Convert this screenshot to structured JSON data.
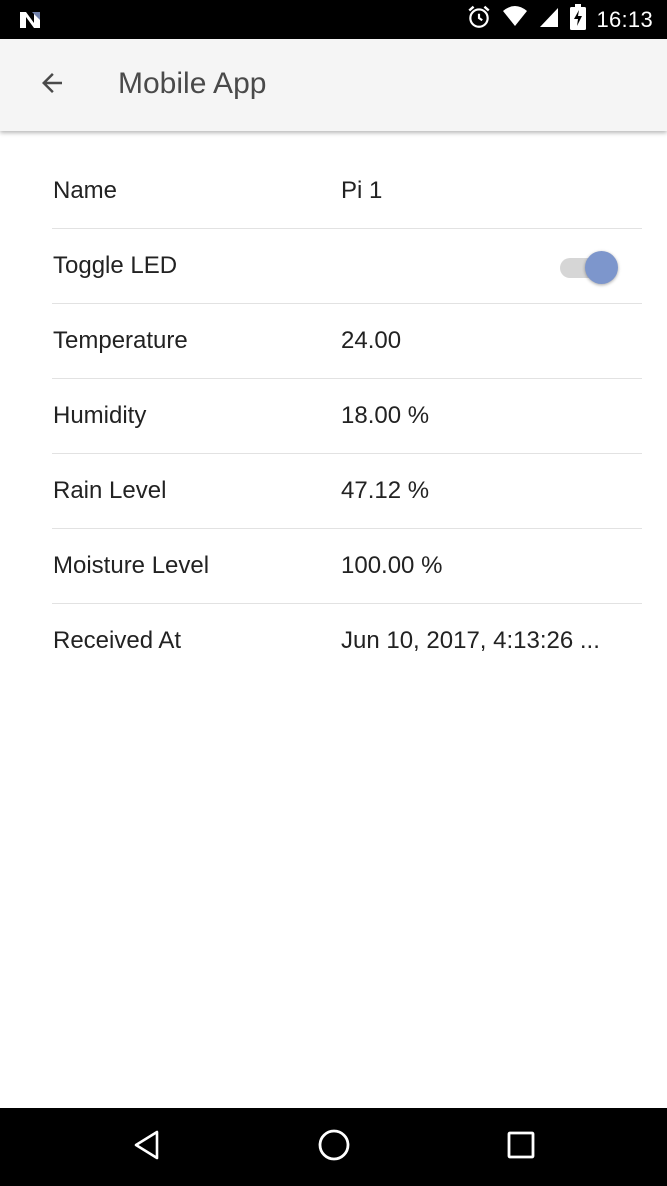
{
  "status_bar": {
    "time": "16:13",
    "icons": [
      "notification-n-icon",
      "alarm-icon",
      "wifi-icon",
      "cell-signal-icon",
      "battery-charging-icon"
    ]
  },
  "app_bar": {
    "title": "Mobile App",
    "back_icon": "arrow-back-icon"
  },
  "rows": [
    {
      "label": "Name",
      "value": "Pi 1"
    },
    {
      "label": "Toggle LED",
      "value": ""
    },
    {
      "label": "Temperature",
      "value": "24.00"
    },
    {
      "label": "Humidity",
      "value": "18.00 %"
    },
    {
      "label": "Rain Level",
      "value": "47.12 %"
    },
    {
      "label": "Moisture Level",
      "value": "100.00 %"
    },
    {
      "label": "Received At",
      "value": "Jun 10, 2017, 4:13:26 ..."
    }
  ],
  "toggle_led": {
    "checked": true,
    "accent_color": "#7d96cc",
    "track_color": "#d6d6d6"
  },
  "nav_bar": {
    "icons": [
      "back-triangle-icon",
      "home-circle-icon",
      "recents-square-icon"
    ]
  },
  "colors": {
    "status_bar": "#000000",
    "app_bar": "#f5f5f5",
    "title_text": "#4a4a4a",
    "body_text": "#222222",
    "divider": "#e2e2e2"
  }
}
